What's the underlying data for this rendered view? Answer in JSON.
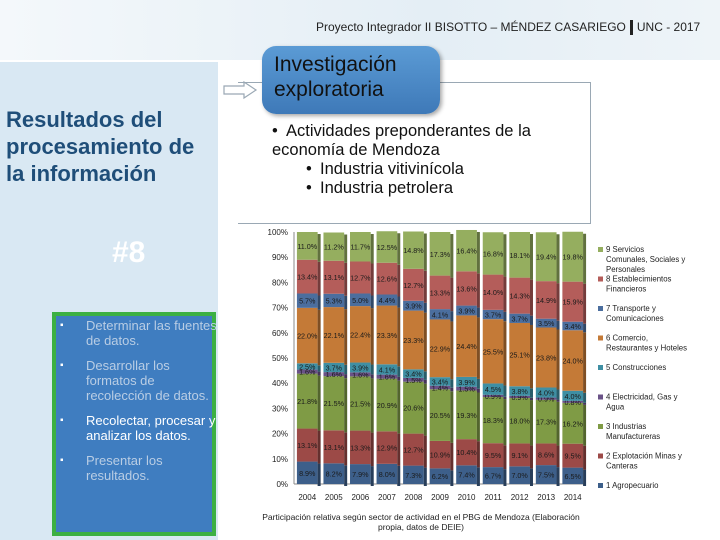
{
  "header": {
    "left": "Proyecto Integrador II BISOTTO – MÉNDEZ CASARIEGO",
    "right": "UNC - 2017"
  },
  "sidebar": {
    "title": "Resultados del procesamiento de la información",
    "slide_number": "#8",
    "bullets": [
      {
        "label": "Determinar las fuentes de datos.",
        "active": false
      },
      {
        "label": "Desarrollar los formatos de recolección de datos.",
        "active": false
      },
      {
        "label": "Recolectar, procesar y analizar los datos.",
        "active": true
      },
      {
        "label": "Presentar los resultados.",
        "active": false
      }
    ]
  },
  "investigacion": {
    "label": "Investigación exploratoria"
  },
  "activities": {
    "main": "Actividades preponderantes de la economía de Mendoza",
    "sub": [
      "Industria vitivinícola",
      "Industria petrolera"
    ]
  },
  "chart_data": {
    "type": "bar",
    "stacked": true,
    "percent": true,
    "categories": [
      "2004",
      "2005",
      "2006",
      "2007",
      "2008",
      "2009",
      "2010",
      "2011",
      "2012",
      "2013",
      "2014"
    ],
    "yticks": [
      "0%",
      "10%",
      "20%",
      "30%",
      "40%",
      "50%",
      "60%",
      "70%",
      "80%",
      "90%",
      "100%"
    ],
    "ylim": [
      0,
      100
    ],
    "legend_position": "right",
    "series": [
      {
        "name": "1  Agropecuario",
        "color": "#3d5f8a",
        "values": [
          8.9,
          8.2,
          7.9,
          8.0,
          7.3,
          6.2,
          7.4,
          6.7,
          7.0,
          7.5,
          6.5
        ]
      },
      {
        "name": "2  Explotación Minas y Canteras",
        "color": "#9c4a47",
        "values": [
          13.1,
          13.1,
          13.3,
          12.9,
          12.7,
          10.9,
          10.4,
          9.5,
          9.1,
          8.6,
          9.5
        ]
      },
      {
        "name": "3  Industrias Manufactureras",
        "color": "#7f9b45",
        "values": [
          21.8,
          21.5,
          21.5,
          20.9,
          20.6,
          20.5,
          19.3,
          18.3,
          18.0,
          17.3,
          16.2
        ]
      },
      {
        "name": "4  Electricidad, Gas y Agua",
        "color": "#6a5287",
        "values": [
          1.6,
          1.6,
          1.6,
          1.6,
          1.5,
          1.4,
          1.5,
          0.9,
          0.9,
          0.9,
          0.8
        ]
      },
      {
        "name": "5  Construcciones",
        "color": "#3f8fa3",
        "values": [
          2.5,
          3.7,
          3.9,
          4.1,
          3.4,
          3.4,
          3.9,
          4.5,
          3.8,
          4.0,
          4.0
        ]
      },
      {
        "name": "6  Comercio, Restaurantes y Hoteles",
        "color": "#c47a37",
        "values": [
          22.0,
          22.1,
          22.4,
          23.3,
          23.3,
          22.9,
          24.4,
          25.5,
          25.1,
          23.8,
          24.0
        ]
      },
      {
        "name": "7  Transporte y Comunicaciones",
        "color": "#4b6e9e",
        "values": [
          5.7,
          5.3,
          5.0,
          4.4,
          3.9,
          4.1,
          3.9,
          3.7,
          3.7,
          3.5,
          3.4
        ]
      },
      {
        "name": "8  Establecimientos Financieros",
        "color": "#b45d5a",
        "values": [
          13.4,
          13.1,
          12.7,
          12.6,
          12.7,
          13.3,
          13.6,
          14.0,
          14.3,
          14.9,
          15.9
        ]
      },
      {
        "name": "9  Servicios Comunales, Sociales y Personales",
        "color": "#95ae5f",
        "values": [
          11.0,
          11.2,
          11.7,
          12.5,
          14.8,
          17.3,
          16.4,
          16.8,
          18.1,
          19.4,
          19.8
        ]
      }
    ],
    "caption": "Participación relativa según sector de actividad en el PBG de Mendoza (Elaboración propia, datos de DEIE)"
  }
}
